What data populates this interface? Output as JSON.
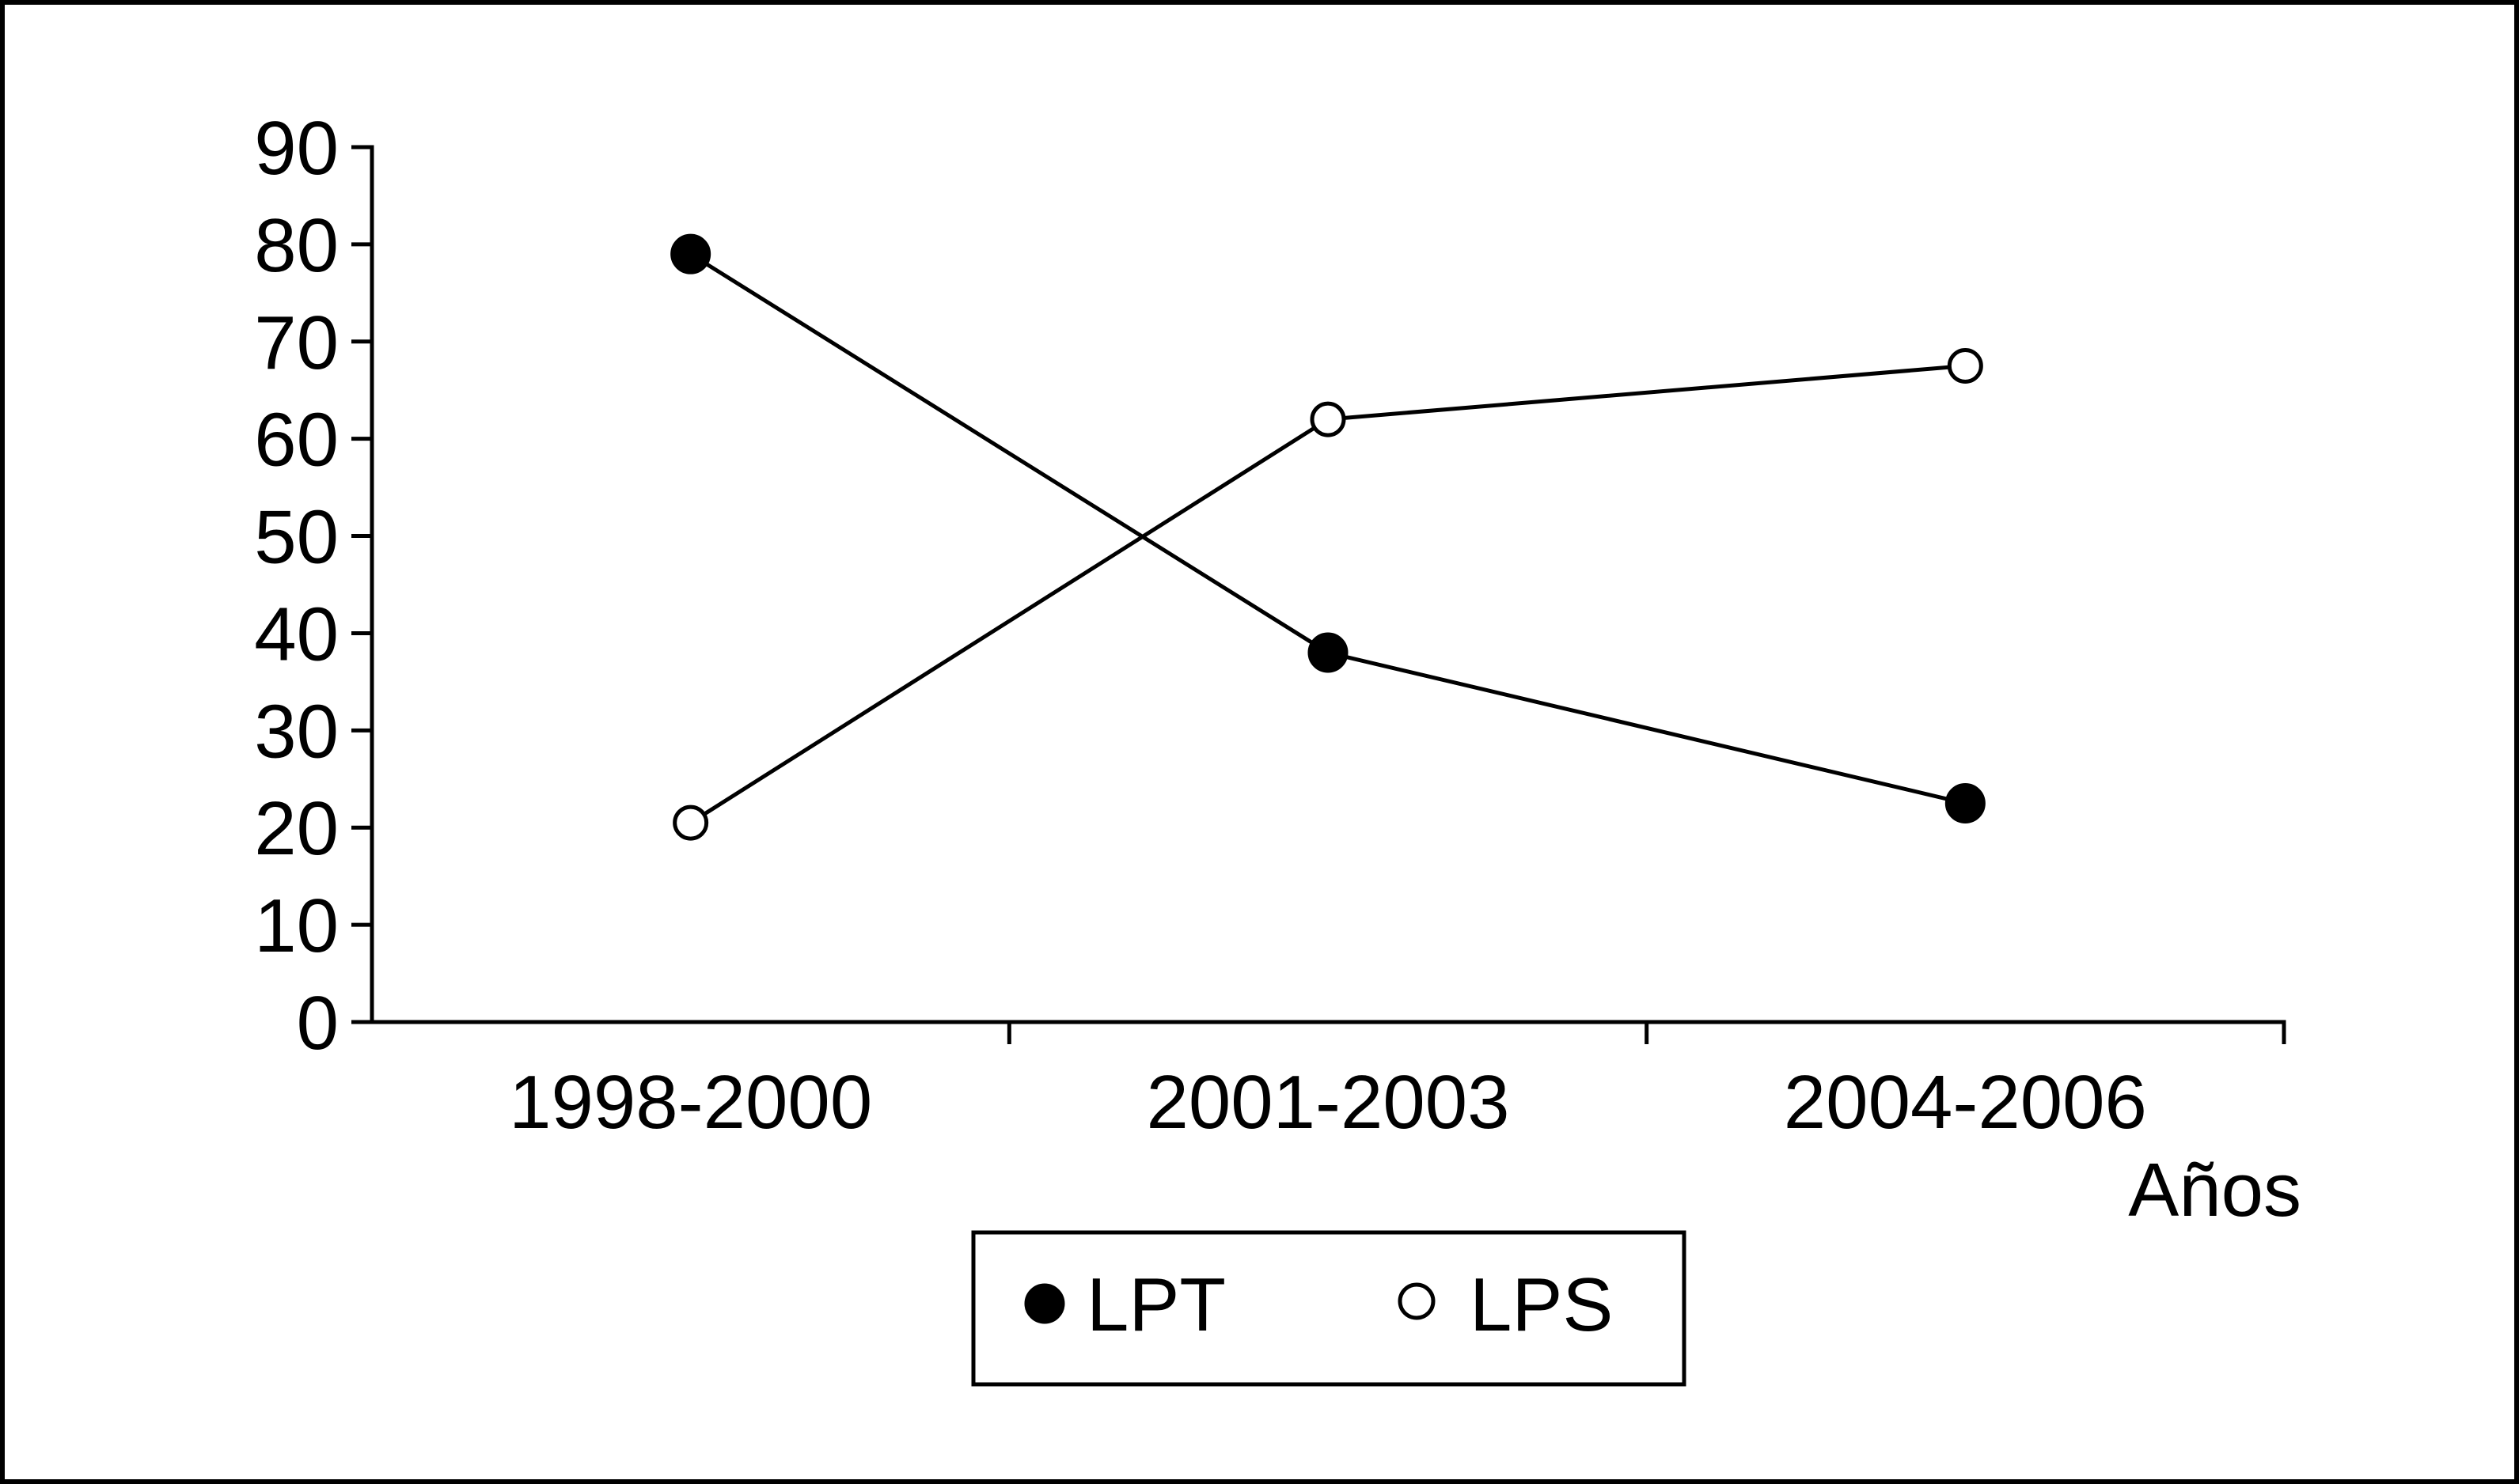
{
  "chart_data": {
    "type": "line",
    "title": "",
    "xlabel": "Años",
    "ylabel": "",
    "categories": [
      "1998-2000",
      "2001-2003",
      "2004-2006"
    ],
    "ylim": [
      0,
      90
    ],
    "yticks": [
      0,
      10,
      20,
      30,
      40,
      50,
      60,
      70,
      80,
      90
    ],
    "grid": false,
    "legend_position": "bottom-center",
    "series": [
      {
        "name": "LPT",
        "marker": "filled-circle",
        "values": [
          79,
          38,
          22.5
        ]
      },
      {
        "name": "LPS",
        "marker": "open-circle",
        "values": [
          20.5,
          62,
          67.5
        ]
      }
    ],
    "colors": {
      "line": "#000000",
      "marker_fill_open": "#ffffff",
      "marker_fill_filled": "#000000"
    }
  }
}
